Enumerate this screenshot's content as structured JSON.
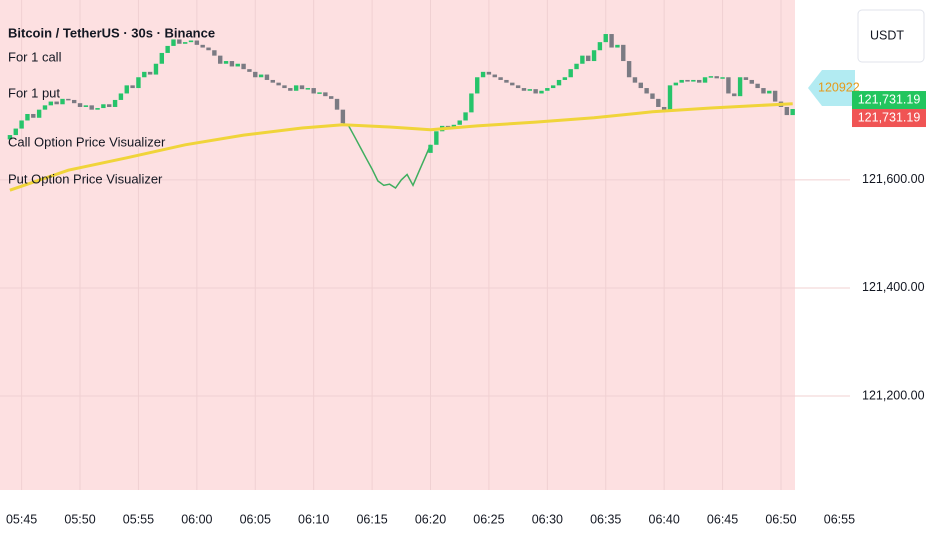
{
  "chart_data": {
    "type": "candlestick",
    "title": "Bitcoin / TetherUS · 30s · Binance",
    "legend_lines": [
      "For 1 call",
      "For 1 put",
      "Call Option Price Visualizer",
      "Put Option Price Visualizer"
    ],
    "currency": "USDT",
    "indicator_tag": "120922",
    "up_color": "#26c46a",
    "down_color": "#7b7b83",
    "open": [
      121675,
      121683,
      121695,
      121710,
      121722,
      121715,
      121730,
      121738,
      121745,
      121740,
      121750,
      121748,
      121742,
      121735,
      121738,
      121730,
      121733,
      121740,
      121735,
      121748,
      121760,
      121775,
      121770,
      121790,
      121800,
      121795,
      121815,
      121835,
      121848,
      121860,
      121852,
      121855,
      121858,
      121850,
      121845,
      121840,
      121830,
      121815,
      121820,
      121810,
      121815,
      121805,
      121800,
      121790,
      121795,
      121785,
      121780,
      121775,
      121770,
      121765,
      121775,
      121768,
      121770,
      121760,
      121762,
      121755,
      121750,
      121730,
      null,
      null,
      null,
      null,
      null,
      null,
      null,
      null,
      null,
      null,
      null,
      null,
      null,
      null,
      121650,
      121665,
      121690,
      121700,
      121698,
      121702,
      121710,
      121725,
      121760,
      121790,
      121800,
      121795,
      121790,
      121785,
      121780,
      121775,
      121770,
      121765,
      121768,
      121760,
      121765,
      121770,
      121775,
      121785,
      121790,
      121805,
      121815,
      121830,
      121820,
      121840,
      121855,
      121870,
      121845,
      121850,
      121820,
      121790,
      121780,
      121770,
      121760,
      121750,
      121735,
      121730,
      121775,
      121780,
      121785,
      121782,
      121785,
      121780,
      121790,
      121792,
      121788,
      121790,
      121760,
      121755,
      121790,
      121785,
      121778,
      121770,
      121760,
      121765,
      121745,
      121735,
      121720
    ],
    "close": [
      121683,
      121695,
      121710,
      121722,
      121715,
      121730,
      121738,
      121745,
      121740,
      121750,
      121748,
      121742,
      121735,
      121738,
      121730,
      121733,
      121740,
      121735,
      121748,
      121760,
      121775,
      121770,
      121790,
      121800,
      121795,
      121815,
      121835,
      121848,
      121860,
      121852,
      121855,
      121858,
      121850,
      121845,
      121840,
      121830,
      121815,
      121820,
      121810,
      121815,
      121805,
      121800,
      121790,
      121795,
      121785,
      121780,
      121775,
      121770,
      121765,
      121775,
      121768,
      121770,
      121760,
      121762,
      121755,
      121750,
      121730,
      121705,
      null,
      null,
      null,
      null,
      null,
      null,
      null,
      null,
      null,
      null,
      null,
      null,
      null,
      null,
      121665,
      121690,
      121700,
      121698,
      121702,
      121710,
      121725,
      121760,
      121790,
      121800,
      121795,
      121790,
      121785,
      121780,
      121775,
      121770,
      121765,
      121768,
      121760,
      121765,
      121770,
      121775,
      121785,
      121790,
      121805,
      121815,
      121830,
      121820,
      121840,
      121855,
      121870,
      121845,
      121850,
      121820,
      121790,
      121780,
      121770,
      121760,
      121750,
      121735,
      121730,
      121775,
      121780,
      121785,
      121782,
      121785,
      121780,
      121790,
      121792,
      121788,
      121790,
      121760,
      121755,
      121790,
      121785,
      121778,
      121770,
      121760,
      121765,
      121745,
      121735,
      121720,
      121731.19
    ],
    "series": [
      {
        "color": "#3fae5f",
        "x": [
          57,
          58,
          59,
          60,
          61,
          62,
          63,
          64,
          65,
          66,
          67,
          68,
          69,
          70,
          71,
          72
        ],
        "values": [
          121705,
          121700,
          121680,
          121660,
          121640,
          121620,
          121598,
          121590,
          121592,
          121585,
          121600,
          121610,
          121590,
          121615,
          121640,
          121665
        ]
      },
      {
        "color": "#f0d43a",
        "x": [
          0,
          10,
          20,
          30,
          40,
          50,
          57,
          65,
          72,
          80,
          90,
          100,
          110,
          120,
          134
        ],
        "values": [
          121581,
          121618,
          121641,
          121665,
          121683,
          121696,
          121702,
          121698,
          121693,
          121700,
          121707,
          121715,
          121726,
          121733,
          121741
        ]
      }
    ],
    "price_tags": [
      {
        "value": 121731.19,
        "label": "121,731.19",
        "color": "#22c55e"
      },
      {
        "value": 121731.19,
        "label": "121,731.19",
        "color": "#f05454"
      }
    ],
    "xlim": [
      -1.7,
      134.4
    ],
    "ylim": [
      121026,
      121933
    ],
    "yticks": [
      {
        "value": 121600,
        "label": "121,600.00"
      },
      {
        "value": 121400,
        "label": "121,400.00"
      },
      {
        "value": 121200,
        "label": "121,200.00"
      }
    ],
    "xticks": [
      {
        "value": 2,
        "label": "05:45"
      },
      {
        "value": 12,
        "label": "05:50"
      },
      {
        "value": 22,
        "label": "05:55"
      },
      {
        "value": 32,
        "label": "06:00"
      },
      {
        "value": 42,
        "label": "06:05"
      },
      {
        "value": 52,
        "label": "06:10"
      },
      {
        "value": 62,
        "label": "06:15"
      },
      {
        "value": 72,
        "label": "06:20"
      },
      {
        "value": 82,
        "label": "06:25"
      },
      {
        "value": 92,
        "label": "06:30"
      },
      {
        "value": 102,
        "label": "06:35"
      },
      {
        "value": 112,
        "label": "06:40"
      },
      {
        "value": 122,
        "label": "06:45"
      },
      {
        "value": 132,
        "label": "06:50"
      },
      {
        "value": 142,
        "label": "06:55"
      }
    ],
    "grid": true
  }
}
